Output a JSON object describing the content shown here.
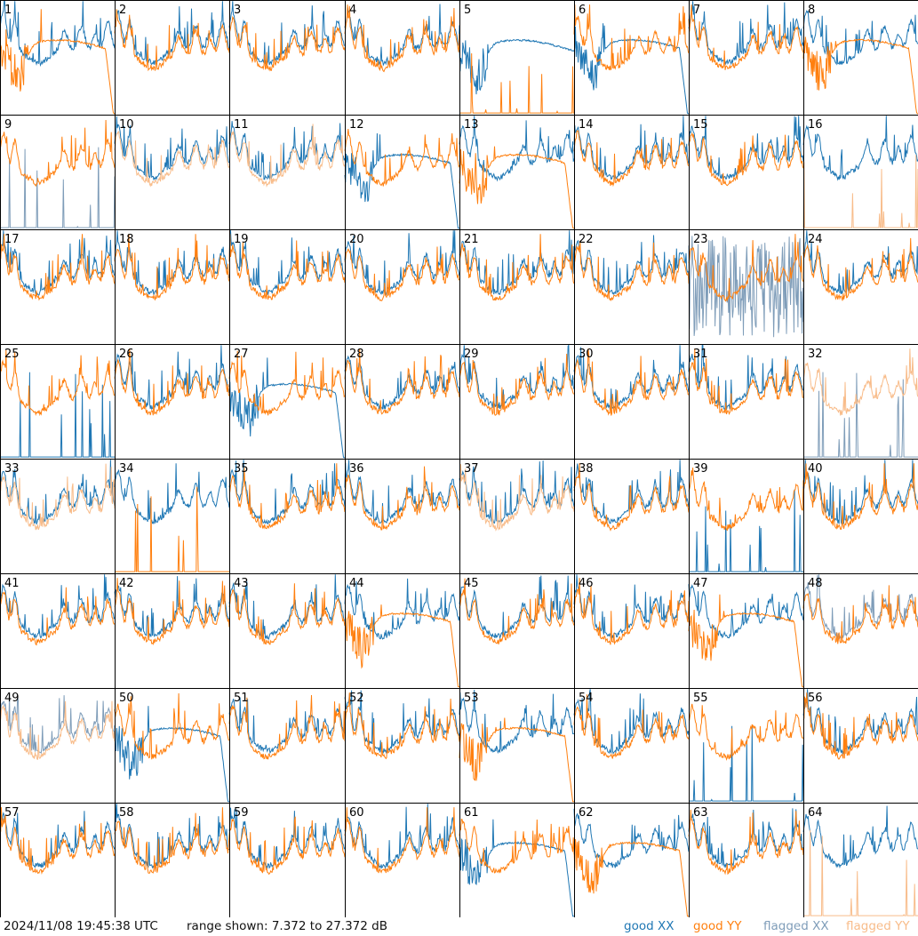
{
  "footer": {
    "timestamp": "2024/11/08 19:45:38 UTC",
    "range_text": "range shown: 7.372 to 27.372 dB"
  },
  "legend": {
    "good_xx": "good XX",
    "good_yy": "good YY",
    "flagged_xx": "flagged XX",
    "flagged_yy": "flagged YY"
  },
  "colors": {
    "good_xx": "#1f77b4",
    "good_yy": "#ff7f0e",
    "flagged_xx": "#7f9db9",
    "flagged_yy": "#f8bc8a"
  },
  "chart_data": {
    "type": "line",
    "grid": "8x8 small multiples",
    "y_range_db": [
      7.372,
      27.372
    ],
    "series_legend": [
      "good XX",
      "good YY",
      "flagged XX",
      "flagged YY"
    ],
    "tiles": [
      {
        "id": 1,
        "xx": "good",
        "yy": "good",
        "xx_shape": "normal",
        "yy_shape": "bowl",
        "yy_dropoff": true
      },
      {
        "id": 2,
        "xx": "good",
        "yy": "good",
        "xx_shape": "normal",
        "yy_shape": "normal"
      },
      {
        "id": 3,
        "xx": "good",
        "yy": "good",
        "xx_shape": "normal",
        "yy_shape": "normal"
      },
      {
        "id": 4,
        "xx": "good",
        "yy": "good",
        "xx_shape": "normal",
        "yy_shape": "normal"
      },
      {
        "id": 5,
        "xx": "good",
        "yy": "good",
        "xx_shape": "bowl",
        "yy_shape": "spikes"
      },
      {
        "id": 6,
        "xx": "good",
        "yy": "good",
        "xx_shape": "bowl",
        "yy_shape": "normal",
        "xx_dropoff": true
      },
      {
        "id": 7,
        "xx": "good",
        "yy": "good",
        "xx_shape": "normal",
        "yy_shape": "normal"
      },
      {
        "id": 8,
        "xx": "good",
        "yy": "good",
        "xx_shape": "normal",
        "yy_shape": "bowl",
        "yy_dropoff": true
      },
      {
        "id": 9,
        "xx": "flagged",
        "yy": "good",
        "xx_shape": "spikes",
        "yy_shape": "normal"
      },
      {
        "id": 10,
        "xx": "good",
        "yy": "flagged",
        "xx_shape": "normal",
        "yy_shape": "normal"
      },
      {
        "id": 11,
        "xx": "good",
        "yy": "flagged",
        "xx_shape": "normal",
        "yy_shape": "normal"
      },
      {
        "id": 12,
        "xx": "good",
        "yy": "good",
        "xx_shape": "bowl",
        "yy_shape": "normal",
        "xx_dropoff": true
      },
      {
        "id": 13,
        "xx": "good",
        "yy": "good",
        "xx_shape": "normal",
        "yy_shape": "bowl",
        "yy_dropoff": true
      },
      {
        "id": 14,
        "xx": "good",
        "yy": "good",
        "xx_shape": "normal",
        "yy_shape": "normal"
      },
      {
        "id": 15,
        "xx": "good",
        "yy": "good",
        "xx_shape": "normal",
        "yy_shape": "normal"
      },
      {
        "id": 16,
        "xx": "good",
        "yy": "flagged",
        "xx_shape": "normal",
        "yy_shape": "spikes"
      },
      {
        "id": 17,
        "xx": "good",
        "yy": "good",
        "xx_shape": "normal",
        "yy_shape": "normal"
      },
      {
        "id": 18,
        "xx": "good",
        "yy": "good",
        "xx_shape": "normal",
        "yy_shape": "normal"
      },
      {
        "id": 19,
        "xx": "good",
        "yy": "good",
        "xx_shape": "normal",
        "yy_shape": "normal"
      },
      {
        "id": 20,
        "xx": "good",
        "yy": "good",
        "xx_shape": "normal",
        "yy_shape": "normal"
      },
      {
        "id": 21,
        "xx": "good",
        "yy": "good",
        "xx_shape": "normal",
        "yy_shape": "normal"
      },
      {
        "id": 22,
        "xx": "good",
        "yy": "good",
        "xx_shape": "normal",
        "yy_shape": "normal"
      },
      {
        "id": 23,
        "xx": "flagged",
        "yy": "good",
        "xx_shape": "noise",
        "yy_shape": "normal"
      },
      {
        "id": 24,
        "xx": "good",
        "yy": "good",
        "xx_shape": "normal",
        "yy_shape": "normal"
      },
      {
        "id": 25,
        "xx": "good",
        "yy": "good",
        "xx_shape": "spikes",
        "yy_shape": "normal"
      },
      {
        "id": 26,
        "xx": "good",
        "yy": "good",
        "xx_shape": "normal",
        "yy_shape": "normal"
      },
      {
        "id": 27,
        "xx": "good",
        "yy": "good",
        "xx_shape": "bowl",
        "yy_shape": "normal",
        "xx_dropoff": true
      },
      {
        "id": 28,
        "xx": "good",
        "yy": "good",
        "xx_shape": "normal",
        "yy_shape": "normal"
      },
      {
        "id": 29,
        "xx": "good",
        "yy": "good",
        "xx_shape": "normal",
        "yy_shape": "normal"
      },
      {
        "id": 30,
        "xx": "good",
        "yy": "good",
        "xx_shape": "normal",
        "yy_shape": "normal"
      },
      {
        "id": 31,
        "xx": "good",
        "yy": "good",
        "xx_shape": "normal",
        "yy_shape": "normal"
      },
      {
        "id": 32,
        "xx": "flagged",
        "yy": "flagged",
        "xx_shape": "spikes",
        "yy_shape": "normal"
      },
      {
        "id": 33,
        "xx": "good",
        "yy": "flagged",
        "xx_shape": "normal",
        "yy_shape": "normal"
      },
      {
        "id": 34,
        "xx": "good",
        "yy": "good",
        "xx_shape": "normal",
        "yy_shape": "spikes"
      },
      {
        "id": 35,
        "xx": "good",
        "yy": "good",
        "xx_shape": "normal",
        "yy_shape": "normal"
      },
      {
        "id": 36,
        "xx": "good",
        "yy": "good",
        "xx_shape": "normal",
        "yy_shape": "normal"
      },
      {
        "id": 37,
        "xx": "good",
        "yy": "flagged",
        "xx_shape": "normal",
        "yy_shape": "normal"
      },
      {
        "id": 38,
        "xx": "good",
        "yy": "good",
        "xx_shape": "normal",
        "yy_shape": "normal"
      },
      {
        "id": 39,
        "xx": "good",
        "yy": "good",
        "xx_shape": "spikes",
        "yy_shape": "normal"
      },
      {
        "id": 40,
        "xx": "good",
        "yy": "good",
        "xx_shape": "normal",
        "yy_shape": "normal"
      },
      {
        "id": 41,
        "xx": "good",
        "yy": "good",
        "xx_shape": "normal",
        "yy_shape": "normal"
      },
      {
        "id": 42,
        "xx": "good",
        "yy": "good",
        "xx_shape": "normal",
        "yy_shape": "normal"
      },
      {
        "id": 43,
        "xx": "good",
        "yy": "good",
        "xx_shape": "normal",
        "yy_shape": "normal"
      },
      {
        "id": 44,
        "xx": "good",
        "yy": "good",
        "xx_shape": "normal",
        "yy_shape": "bowl",
        "yy_dropoff": true
      },
      {
        "id": 45,
        "xx": "good",
        "yy": "good",
        "xx_shape": "normal",
        "yy_shape": "normal"
      },
      {
        "id": 46,
        "xx": "good",
        "yy": "good",
        "xx_shape": "normal",
        "yy_shape": "normal"
      },
      {
        "id": 47,
        "xx": "good",
        "yy": "good",
        "xx_shape": "normal",
        "yy_shape": "bowl",
        "yy_dropoff": true
      },
      {
        "id": 48,
        "xx": "flagged",
        "yy": "good",
        "xx_shape": "normal",
        "yy_shape": "normal"
      },
      {
        "id": 49,
        "xx": "flagged",
        "yy": "flagged",
        "xx_shape": "normal",
        "yy_shape": "normal"
      },
      {
        "id": 50,
        "xx": "good",
        "yy": "good",
        "xx_shape": "bowl",
        "yy_shape": "normal",
        "xx_dropoff": true
      },
      {
        "id": 51,
        "xx": "good",
        "yy": "good",
        "xx_shape": "normal",
        "yy_shape": "normal"
      },
      {
        "id": 52,
        "xx": "good",
        "yy": "good",
        "xx_shape": "normal",
        "yy_shape": "normal"
      },
      {
        "id": 53,
        "xx": "good",
        "yy": "good",
        "xx_shape": "normal",
        "yy_shape": "bowl",
        "yy_dropoff": true
      },
      {
        "id": 54,
        "xx": "good",
        "yy": "good",
        "xx_shape": "normal",
        "yy_shape": "normal"
      },
      {
        "id": 55,
        "xx": "good",
        "yy": "good",
        "xx_shape": "spikes",
        "yy_shape": "normal"
      },
      {
        "id": 56,
        "xx": "good",
        "yy": "good",
        "xx_shape": "normal",
        "yy_shape": "normal"
      },
      {
        "id": 57,
        "xx": "good",
        "yy": "good",
        "xx_shape": "normal",
        "yy_shape": "normal"
      },
      {
        "id": 58,
        "xx": "good",
        "yy": "good",
        "xx_shape": "normal",
        "yy_shape": "normal"
      },
      {
        "id": 59,
        "xx": "good",
        "yy": "good",
        "xx_shape": "normal",
        "yy_shape": "normal"
      },
      {
        "id": 60,
        "xx": "good",
        "yy": "good",
        "xx_shape": "normal",
        "yy_shape": "normal"
      },
      {
        "id": 61,
        "xx": "good",
        "yy": "good",
        "xx_shape": "bowl",
        "yy_shape": "normal",
        "xx_dropoff": true
      },
      {
        "id": 62,
        "xx": "good",
        "yy": "good",
        "xx_shape": "normal",
        "yy_shape": "bowl",
        "yy_dropoff": true
      },
      {
        "id": 63,
        "xx": "good",
        "yy": "good",
        "xx_shape": "normal",
        "yy_shape": "normal"
      },
      {
        "id": 64,
        "xx": "good",
        "yy": "flagged",
        "xx_shape": "normal",
        "yy_shape": "spikes"
      }
    ]
  }
}
